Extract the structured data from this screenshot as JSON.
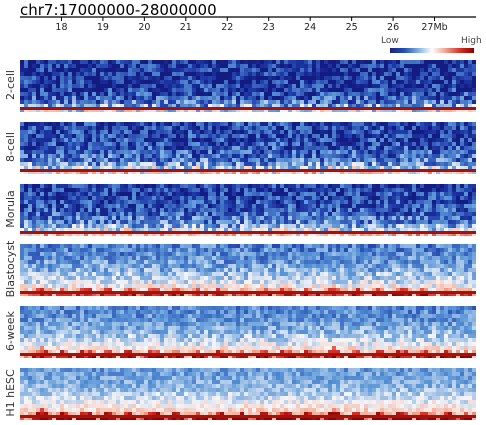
{
  "chart_data": {
    "type": "heatmap",
    "title": "chr7:17000000-28000000",
    "x_ticks": [
      "18",
      "19",
      "20",
      "21",
      "22",
      "23",
      "24",
      "25",
      "26",
      "27Mb"
    ],
    "x_tick_values": [
      18,
      19,
      20,
      21,
      22,
      23,
      24,
      25,
      26,
      27
    ],
    "xlim": [
      17,
      28
    ],
    "x_unit": "Mb",
    "colorbar": {
      "low_label": "Low",
      "high_label": "High",
      "colors": [
        "#1a237e",
        "#1f4fb4",
        "#7fb0e0",
        "#ffffff",
        "#f0a08a",
        "#d73027",
        "#8b0000"
      ]
    },
    "panels": [
      {
        "label": "2-cell",
        "structure": 0.05,
        "background_level": 0.12,
        "diagonal_level": 0.95
      },
      {
        "label": "8-cell",
        "structure": 0.18,
        "background_level": 0.2,
        "diagonal_level": 0.95
      },
      {
        "label": "Morula",
        "structure": 0.28,
        "background_level": 0.2,
        "diagonal_level": 0.95
      },
      {
        "label": "Blastocyst",
        "structure": 0.72,
        "background_level": 0.4,
        "diagonal_level": 0.95
      },
      {
        "label": "6-week",
        "structure": 0.85,
        "background_level": 0.4,
        "diagonal_level": 0.95
      },
      {
        "label": "H1 hESC",
        "structure": 1.0,
        "background_level": 0.45,
        "diagonal_level": 0.95
      }
    ],
    "tad_boundaries_mb": [
      17.25,
      17.8,
      18.3,
      18.85,
      19.35,
      19.9,
      20.5,
      21.05,
      21.55,
      22.1,
      22.6,
      23.15,
      23.7,
      24.25,
      24.85,
      25.4,
      25.95,
      26.5,
      27.05,
      27.55,
      27.95
    ]
  }
}
